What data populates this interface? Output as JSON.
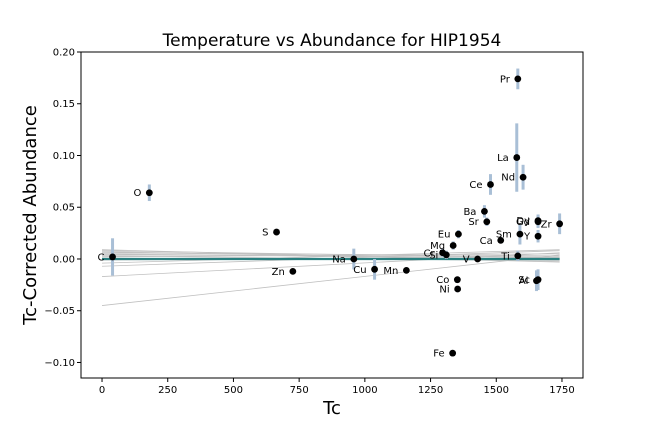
{
  "chart_data": {
    "type": "scatter",
    "title": "Temperature vs Abundance for HIP1954",
    "xlabel": "Tc",
    "ylabel": "Tc-Corrected Abundance",
    "xlim": [
      -80,
      1830
    ],
    "ylim": [
      -0.115,
      0.2
    ],
    "xticks": [
      0,
      250,
      500,
      750,
      1000,
      1250,
      1500,
      1750
    ],
    "yticks": [
      -0.1,
      -0.05,
      0.0,
      0.05,
      0.1,
      0.15,
      0.2
    ],
    "ytick_labels": [
      "−0.10",
      "−0.05",
      "0.00",
      "0.05",
      "0.10",
      "0.15",
      "0.20"
    ],
    "grid": false,
    "legend": "none",
    "colors": {
      "points": "#000000",
      "error_bars": "#a9bfd6",
      "fit_line": "#2a8080",
      "sample_lines": "#c0c0c0"
    },
    "points": [
      {
        "label": "C",
        "x": 40,
        "y": 0.002,
        "err": 0.018
      },
      {
        "label": "O",
        "x": 180,
        "y": 0.064,
        "err": 0.008
      },
      {
        "label": "S",
        "x": 664,
        "y": 0.026,
        "err": 0.0
      },
      {
        "label": "Zn",
        "x": 726,
        "y": -0.012,
        "err": 0.0
      },
      {
        "label": "Na",
        "x": 958,
        "y": 0.0,
        "err": 0.01
      },
      {
        "label": "Cu",
        "x": 1037,
        "y": -0.01,
        "err": 0.01
      },
      {
        "label": "Mn",
        "x": 1158,
        "y": -0.011,
        "err": 0.0
      },
      {
        "label": "Cr",
        "x": 1296,
        "y": 0.006,
        "err": 0.004
      },
      {
        "label": "Si",
        "x": 1310,
        "y": 0.004,
        "err": 0.004
      },
      {
        "label": "Mg",
        "x": 1336,
        "y": 0.013,
        "err": 0.004
      },
      {
        "label": "Fe",
        "x": 1334,
        "y": -0.091,
        "err": 0.0
      },
      {
        "label": "Eu",
        "x": 1356,
        "y": 0.024,
        "err": 0.004
      },
      {
        "label": "Co",
        "x": 1352,
        "y": -0.02,
        "err": 0.003
      },
      {
        "label": "Ni",
        "x": 1353,
        "y": -0.029,
        "err": 0.003
      },
      {
        "label": "V",
        "x": 1429,
        "y": 0.0,
        "err": 0.0
      },
      {
        "label": "Ba",
        "x": 1455,
        "y": 0.046,
        "err": 0.006
      },
      {
        "label": "Sr",
        "x": 1464,
        "y": 0.036,
        "err": 0.004
      },
      {
        "label": "Ce",
        "x": 1478,
        "y": 0.072,
        "err": 0.01
      },
      {
        "label": "Ca",
        "x": 1517,
        "y": 0.018,
        "err": 0.003
      },
      {
        "label": "La",
        "x": 1578,
        "y": 0.098,
        "err": 0.033
      },
      {
        "label": "Pr",
        "x": 1582,
        "y": 0.174,
        "err": 0.01
      },
      {
        "label": "Ti",
        "x": 1582,
        "y": 0.003,
        "err": 0.005
      },
      {
        "label": "Sm",
        "x": 1590,
        "y": 0.024,
        "err": 0.01
      },
      {
        "label": "Nd",
        "x": 1602,
        "y": 0.079,
        "err": 0.012
      },
      {
        "label": "Y",
        "x": 1659,
        "y": 0.022,
        "err": 0.006
      },
      {
        "label": "Dy",
        "x": 1659,
        "y": 0.037,
        "err": 0.006
      },
      {
        "label": "Gd",
        "x": 1659,
        "y": 0.036,
        "err": 0.006
      },
      {
        "label": "Sc",
        "x": 1659,
        "y": -0.02,
        "err": 0.01
      },
      {
        "label": "Al",
        "x": 1653,
        "y": -0.021,
        "err": 0.01
      },
      {
        "label": "Zr",
        "x": 1741,
        "y": 0.034,
        "err": 0.01
      }
    ],
    "fit": {
      "slope": 0.0,
      "intercept": 0.0,
      "x_range": [
        0,
        1741
      ]
    },
    "sample_fits": [
      {
        "x0": 0,
        "y0": -0.045,
        "x1": 1741,
        "y1": 0.004
      },
      {
        "x0": 0,
        "y0": -0.017,
        "x1": 1741,
        "y1": 0.006
      },
      {
        "x0": 0,
        "y0": -0.007,
        "x1": 1741,
        "y1": 0.008
      },
      {
        "x0": 0,
        "y0": -0.004,
        "x1": 1741,
        "y1": 0.009
      },
      {
        "x0": 0,
        "y0": 0.002,
        "x1": 1741,
        "y1": 0.005
      },
      {
        "x0": 0,
        "y0": 0.005,
        "x1": 1741,
        "y1": 0.0
      },
      {
        "x0": 0,
        "y0": 0.007,
        "x1": 1741,
        "y1": -0.001
      },
      {
        "x0": 0,
        "y0": 0.008,
        "x1": 1741,
        "y1": 0.001
      },
      {
        "x0": 0,
        "y0": 0.009,
        "x1": 1741,
        "y1": -0.003
      },
      {
        "x0": 0,
        "y0": 0.006,
        "x1": 1741,
        "y1": 0.003
      },
      {
        "x0": 0,
        "y0": 0.003,
        "x1": 1741,
        "y1": -0.002
      },
      {
        "x0": 0,
        "y0": 0.004,
        "x1": 1741,
        "y1": 0.002
      },
      {
        "x0": 0,
        "y0": -0.001,
        "x1": 1741,
        "y1": 0.001
      }
    ]
  }
}
